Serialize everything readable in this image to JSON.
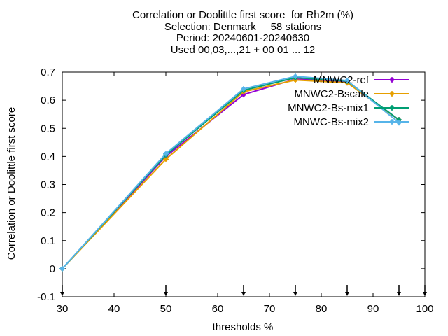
{
  "chart_data": {
    "type": "line",
    "title_lines": [
      "Correlation or Doolittle first score  for Rh2m (%)",
      "Selection: Denmark     58 stations",
      "Period: 20240601-20240630",
      "Used 00,03,...,21 + 00 01 ... 12"
    ],
    "xlabel": "thresholds %",
    "ylabel": "Correlation or Doolittle first score",
    "xlim": [
      30,
      100
    ],
    "ylim": [
      -0.1,
      0.7
    ],
    "x_ticks": [
      30,
      40,
      50,
      60,
      70,
      80,
      90,
      100
    ],
    "x_tick_labels": [
      "30",
      "40",
      "50",
      "60",
      "70",
      "80",
      "90",
      "100"
    ],
    "y_ticks": [
      -0.1,
      0,
      0.1,
      0.2,
      0.3,
      0.4,
      0.5,
      0.6,
      0.7
    ],
    "y_tick_labels": [
      "-0.1",
      "0",
      "0.1",
      "0.2",
      "0.3",
      "0.4",
      "0.5",
      "0.6",
      "0.7"
    ],
    "grid": false,
    "legend_position": "top-right",
    "threshold_markers": [
      30,
      50,
      65,
      75,
      85,
      95,
      100
    ],
    "series": [
      {
        "name": "MNWC2-ref",
        "color": "#9400d3",
        "x": [
          30,
          50,
          65,
          75,
          85,
          95
        ],
        "y": [
          0.0,
          0.4,
          0.62,
          0.675,
          0.665,
          0.53
        ]
      },
      {
        "name": "MNWC2-Bscale",
        "color": "#e69f00",
        "x": [
          30,
          50,
          65,
          75,
          85,
          95
        ],
        "y": [
          0.0,
          0.39,
          0.63,
          0.672,
          0.662,
          0.53
        ]
      },
      {
        "name": "MNWC2-Bs-mix1",
        "color": "#009e73",
        "x": [
          30,
          50,
          65,
          75,
          85,
          95
        ],
        "y": [
          0.0,
          0.405,
          0.635,
          0.68,
          0.668,
          0.53
        ]
      },
      {
        "name": "MNWC-Bs-mix2",
        "color": "#56b4e9",
        "x": [
          30,
          50,
          65,
          75,
          85,
          95
        ],
        "y": [
          0.0,
          0.41,
          0.64,
          0.685,
          0.67,
          0.52
        ]
      }
    ]
  }
}
